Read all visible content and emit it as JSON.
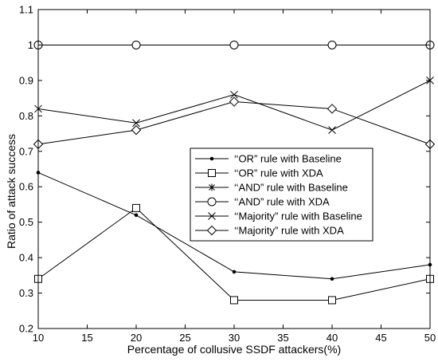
{
  "chart_data": {
    "type": "line",
    "title": "",
    "xlabel": "Percentage of collusive SSDF attackers(%)",
    "ylabel": "Ratio of attack success",
    "x": [
      10,
      20,
      30,
      40,
      50
    ],
    "xlim": [
      10,
      50
    ],
    "ylim": [
      0.2,
      1.1
    ],
    "xticks": [
      "10",
      "15",
      "20",
      "25",
      "30",
      "35",
      "40",
      "45",
      "50"
    ],
    "yticks": [
      "0.2",
      "0.3",
      "0.4",
      "0.5",
      "0.6",
      "0.7",
      "0.8",
      "0.9",
      "1",
      "1.1"
    ],
    "grid": false,
    "legend_position": "center-right",
    "series": [
      {
        "name": "‘‘OR” rule with Baseline",
        "marker": "dot",
        "values": [
          0.64,
          0.52,
          0.36,
          0.34,
          0.38
        ]
      },
      {
        "name": "‘‘OR” rule with XDA",
        "marker": "square",
        "values": [
          0.34,
          0.54,
          0.28,
          0.28,
          0.34
        ]
      },
      {
        "name": "‘‘AND” rule with Baseline",
        "marker": "asterisk",
        "values": [
          1.0,
          1.0,
          1.0,
          1.0,
          1.0
        ]
      },
      {
        "name": "‘‘AND” rule with XDA",
        "marker": "circle",
        "values": [
          1.0,
          1.0,
          1.0,
          1.0,
          1.0
        ]
      },
      {
        "name": "‘‘Majority” rule with Baseline",
        "marker": "x",
        "values": [
          0.82,
          0.78,
          0.86,
          0.76,
          0.9
        ]
      },
      {
        "name": "‘‘Majority” rule with XDA",
        "marker": "diamond",
        "values": [
          0.72,
          0.76,
          0.84,
          0.82,
          0.72
        ]
      }
    ]
  }
}
